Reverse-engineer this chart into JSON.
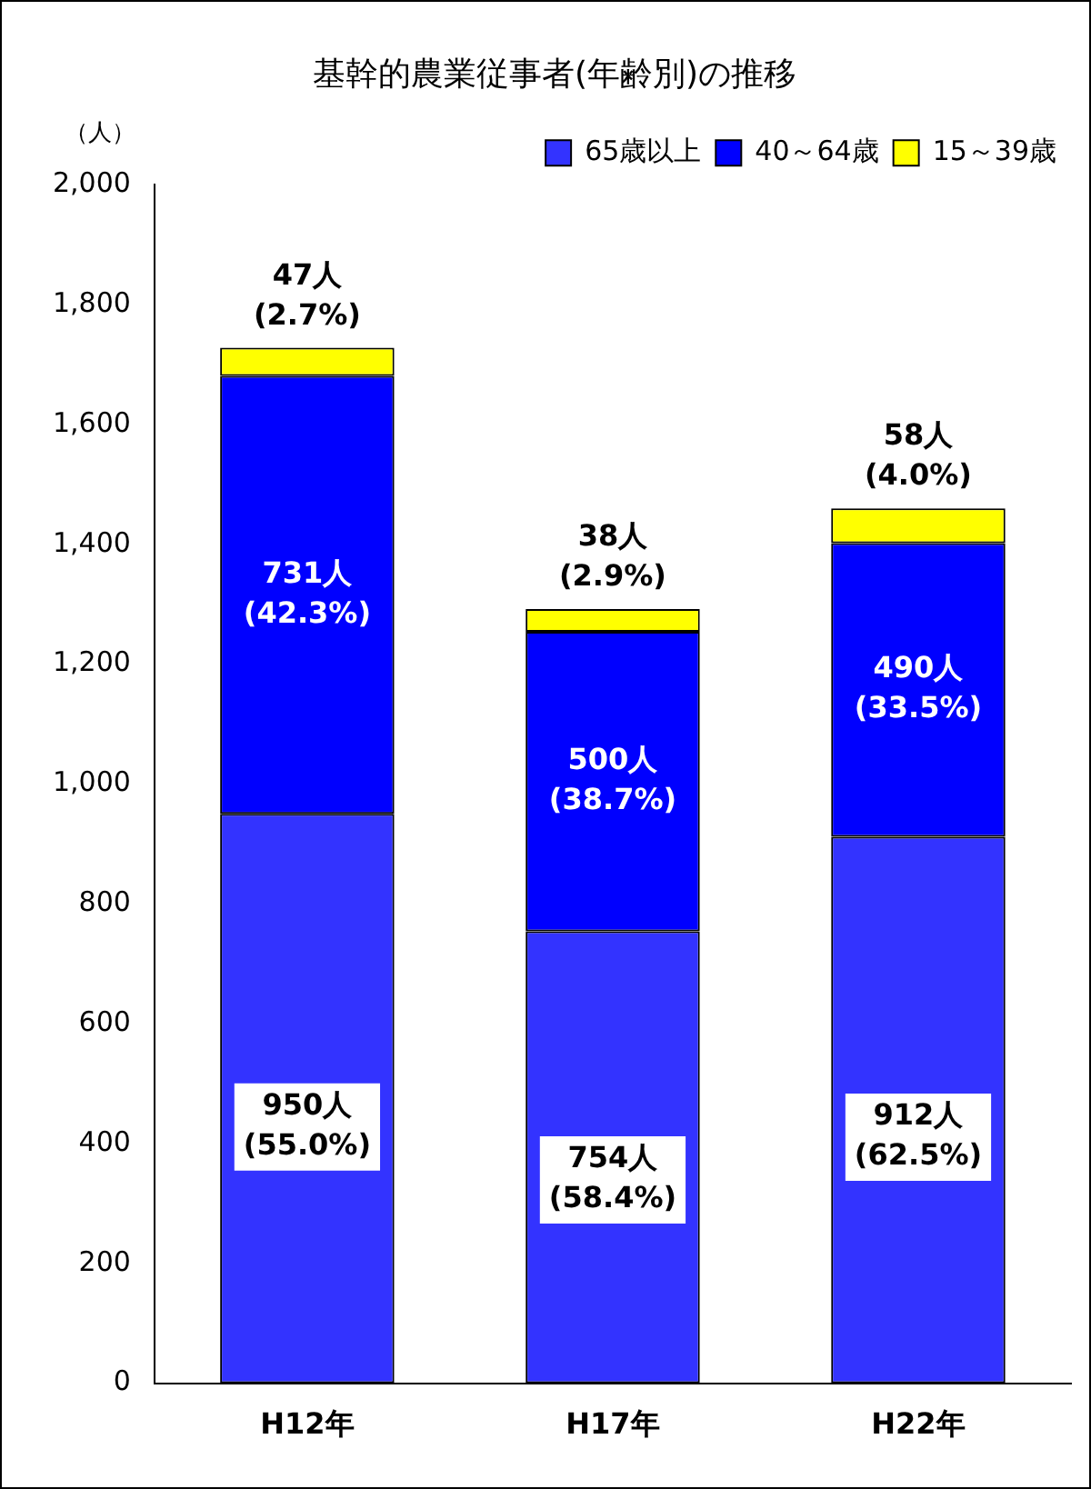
{
  "chart_data": {
    "type": "bar",
    "title": "基幹的農業従事者(年齢別)の推移",
    "ylabel": "（人）",
    "categories": [
      "H12年",
      "H17年",
      "H22年"
    ],
    "stacked": true,
    "legend": "top right",
    "grid": false,
    "ylim": [
      0,
      2000
    ],
    "yticks": [
      0,
      200,
      400,
      600,
      800,
      {
        "value": 1000,
        "label": "1,000"
      },
      {
        "value": 1200,
        "label": "1,200"
      },
      {
        "value": 1400,
        "label": "1,400"
      },
      {
        "value": 1600,
        "label": "1,600"
      },
      {
        "value": 1800,
        "label": "1,800"
      },
      {
        "value": 2000,
        "label": "2,000"
      }
    ],
    "series": [
      {
        "name": "65歳以上",
        "color": "#3333ff",
        "values": [
          950,
          754,
          912
        ],
        "value_labels": [
          "950人\n(55.0%)",
          "754人\n(58.4%)",
          "912人\n(62.5%)"
        ]
      },
      {
        "name": "40～64歳",
        "color": "#0000ff",
        "values": [
          731,
          500,
          490
        ],
        "value_labels": [
          "731人\n(42.3%)",
          "500人\n(38.7%)",
          "490人\n(33.5%)"
        ]
      },
      {
        "name": "15～39歳",
        "color": "#ffff00",
        "values": [
          47,
          38,
          58
        ],
        "value_labels": [
          "47人\n(2.7%)",
          "38人\n(2.9%)",
          "58人\n(4.0%)"
        ]
      }
    ]
  }
}
